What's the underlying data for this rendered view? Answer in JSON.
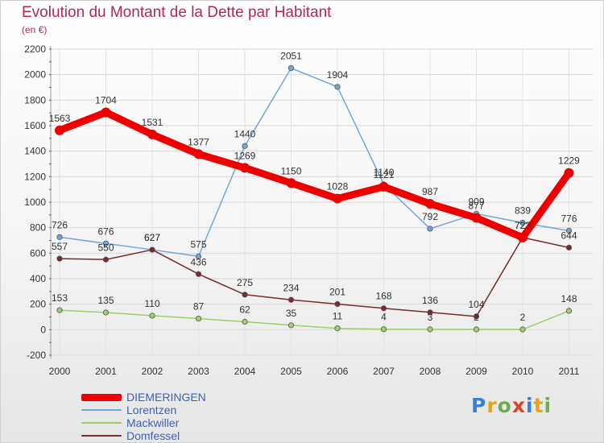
{
  "chart_data": {
    "type": "line",
    "title": "Evolution du Montant de la Dette par Habitant",
    "subtitle": "(en €)",
    "xlabel": "",
    "ylabel": "",
    "categories": [
      "2000",
      "2001",
      "2002",
      "2003",
      "2004",
      "2005",
      "2006",
      "2007",
      "2008",
      "2009",
      "2010",
      "2011"
    ],
    "ylim": [
      -200,
      2200
    ],
    "yticks": [
      -200,
      0,
      200,
      400,
      600,
      800,
      1000,
      1200,
      1400,
      1600,
      1800,
      2000,
      2200
    ],
    "grid": true,
    "legend_position": "bottom-left",
    "series": [
      {
        "name": "DIEMERINGEN",
        "color": "#ee0000",
        "values": [
          1563,
          1704,
          1531,
          1377,
          1269,
          1150,
          1028,
          1121,
          987,
          877,
          723,
          1229
        ],
        "labels": [
          "1563",
          "1704",
          "1531",
          "1377",
          "1269",
          "1150",
          "1028",
          "1121",
          "987",
          "877",
          "723",
          "1229"
        ]
      },
      {
        "name": "Lorentzen",
        "color": "#6fa7d8",
        "values": [
          726,
          676,
          627,
          575,
          1440,
          2051,
          1904,
          1140,
          792,
          909,
          839,
          776
        ],
        "labels": [
          "726",
          "676",
          "627",
          "575",
          "1440",
          "2051",
          "1904",
          "1140",
          "792",
          "909",
          "839",
          "776"
        ]
      },
      {
        "name": "Mackwiller",
        "color": "#9ad267",
        "values": [
          153,
          135,
          110,
          87,
          62,
          35,
          11,
          4,
          3,
          2,
          2,
          148
        ],
        "labels": [
          "153",
          "135",
          "110",
          "87",
          "62",
          "35",
          "11",
          "4",
          "3",
          "2",
          "2",
          "148"
        ]
      },
      {
        "name": "Domfessel",
        "color": "#7a2a2a",
        "values": [
          557,
          550,
          627,
          436,
          275,
          234,
          201,
          168,
          136,
          104,
          723,
          644
        ],
        "labels": [
          "557",
          "550",
          "627",
          "436",
          "275",
          "234",
          "201",
          "168",
          "136",
          "104",
          "723",
          "644"
        ]
      }
    ]
  },
  "brand": {
    "logo_letters": [
      "P",
      "r",
      "o",
      "x",
      "i",
      "t",
      "i"
    ]
  }
}
